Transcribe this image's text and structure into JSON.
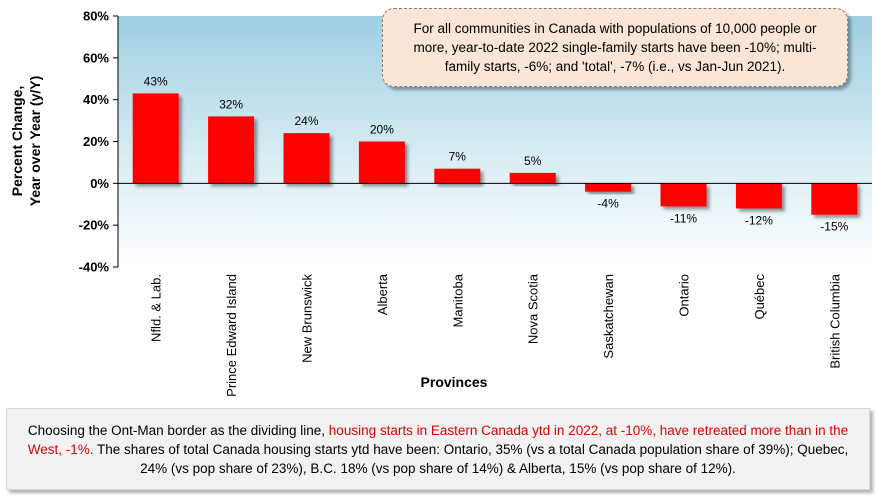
{
  "chart_data": {
    "type": "bar",
    "categories": [
      "Nfld. & Lab.",
      "Prince Edward Island",
      "New Brunswick",
      "Alberta",
      "Manitoba",
      "Nova Scotia",
      "Saskatchewan",
      "Ontario",
      "Québec",
      "British Columbia"
    ],
    "values": [
      43,
      32,
      24,
      20,
      7,
      5,
      -4,
      -11,
      -12,
      -15
    ],
    "data_labels": [
      "43%",
      "32%",
      "24%",
      "20%",
      "7%",
      "5%",
      "-4%",
      "-11%",
      "-12%",
      "-15%"
    ],
    "xlabel": "Provinces",
    "ylabel_line1": "Percent Change,",
    "ylabel_line2": "Year over Year (y/Y)",
    "ylim": [
      -40,
      80
    ],
    "yticks": [
      80,
      60,
      40,
      20,
      0,
      -20,
      -40
    ],
    "ytick_labels": [
      "80%",
      "60%",
      "40%",
      "20%",
      "0%",
      "-20%",
      "-40%"
    ],
    "bar_color": "#ff0000",
    "grid": false,
    "plot_background": "gradient light blue to white"
  },
  "callout": {
    "text": "For all communities in Canada with populations of 10,000 people or more, year-to-date 2022 single-family starts have been -10%; multi-family starts, -6%; and 'total', -7% (i.e., vs Jan-Jun 2021)."
  },
  "footnote": {
    "part1": "Choosing the Ont-Man border as the dividing line, ",
    "part2_red": "housing starts in Eastern Canada ytd in 2022, at -10%, have retreated more than in the West, -1%.",
    "part3": " The shares of total Canada housing starts ytd have been: Ontario, 35% (vs a total Canada population share of 39%); Quebec, 24% (vs pop share of 23%), B.C. 18% (vs pop share of 14%) & Alberta, 15% (vs pop share of 12%).",
    "highlight_color": "#e00000"
  }
}
